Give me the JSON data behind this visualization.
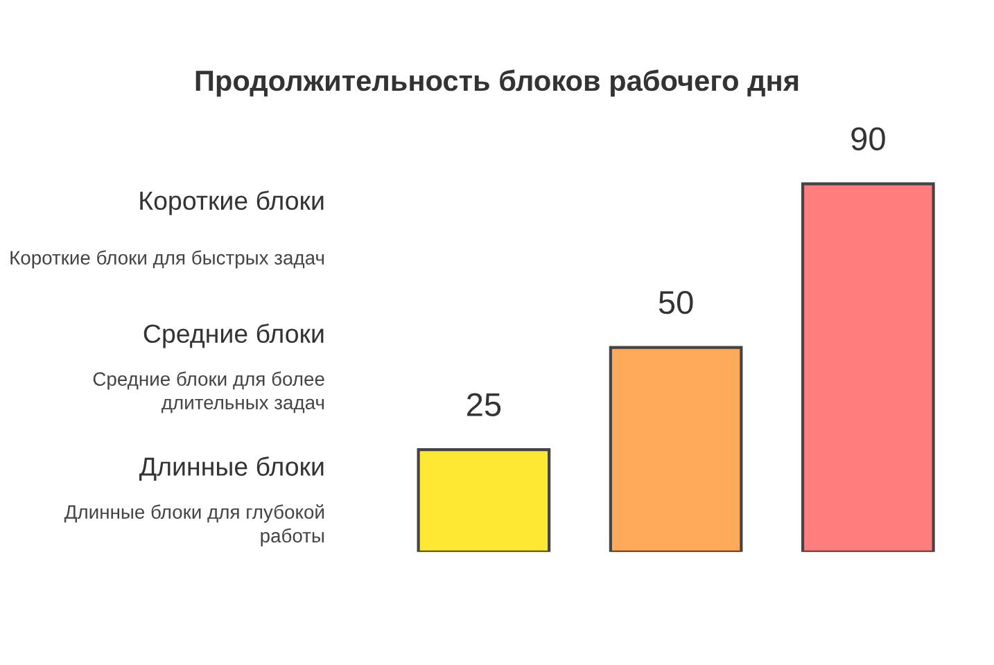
{
  "chart_data": {
    "type": "bar",
    "title": "Продолжительность блоков рабочего дня",
    "categories": [
      null,
      null,
      null
    ],
    "values": [
      25,
      50,
      90
    ],
    "colors": [
      "#ffe833",
      "#ffaa5a",
      "#ff7d7d"
    ],
    "data_labels": true,
    "grid": false,
    "legend": false,
    "annotations": [
      "Короткие блоки",
      "Короткие блоки для быстрых задач",
      "Средние блоки",
      "Средние блоки для более длительных задач",
      "Длинные блоки",
      "Длинные блоки для глубокой работы"
    ]
  }
}
